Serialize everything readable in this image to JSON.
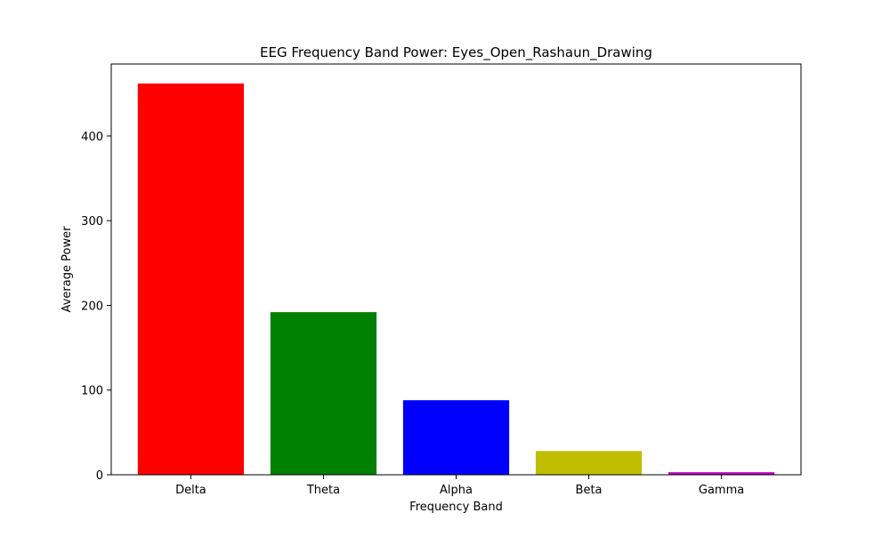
{
  "chart_data": {
    "type": "bar",
    "title": "EEG Frequency Band Power: Eyes_Open_Rashaun_Drawing",
    "xlabel": "Frequency Band",
    "ylabel": "Average Power",
    "categories": [
      "Delta",
      "Theta",
      "Alpha",
      "Beta",
      "Gamma"
    ],
    "values": [
      462,
      192,
      88,
      28,
      3
    ],
    "colors": [
      "#ff0000",
      "#008000",
      "#0000ff",
      "#bfbf00",
      "#bf00bf"
    ],
    "ylim": [
      0,
      485
    ],
    "yticks": [
      0,
      100,
      200,
      300,
      400
    ],
    "grid": false,
    "legend": "none"
  }
}
